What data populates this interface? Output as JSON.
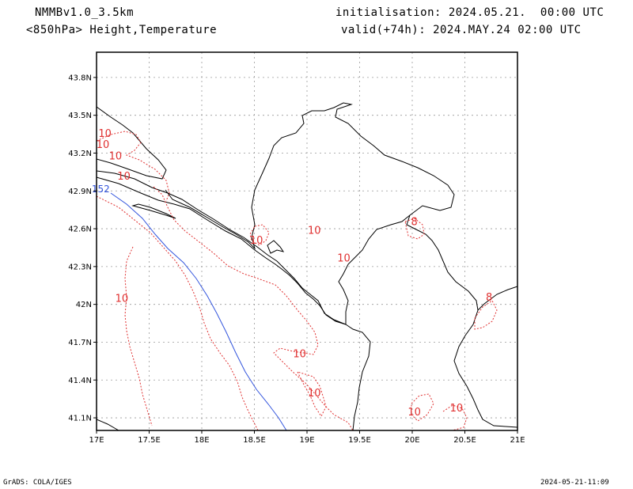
{
  "header": {
    "model": "NMMBv1.0_3.5km",
    "level_field": "<850hPa> Height,Temperature",
    "init": "initialisation: 2024.05.21.  00:00 UTC",
    "valid": "valid(+74h): 2024.MAY.24 02:00 UTC"
  },
  "footer": {
    "left": "GrADS: COLA/IGES",
    "right": "2024-05-21-11:09"
  },
  "map": {
    "lon_range": [
      17,
      21
    ],
    "lat_range": [
      41.0,
      44.0
    ],
    "x_ticks": [
      {
        "value": 17.0,
        "label": "17E"
      },
      {
        "value": 17.5,
        "label": "17.5E"
      },
      {
        "value": 18.0,
        "label": "18E"
      },
      {
        "value": 18.5,
        "label": "18.5E"
      },
      {
        "value": 19.0,
        "label": "19E"
      },
      {
        "value": 19.5,
        "label": "19.5E"
      },
      {
        "value": 20.0,
        "label": "20E"
      },
      {
        "value": 20.5,
        "label": "20.5E"
      },
      {
        "value": 21.0,
        "label": "21E"
      }
    ],
    "y_ticks": [
      {
        "value": 41.1,
        "label": "41.1N"
      },
      {
        "value": 41.4,
        "label": "41.4N"
      },
      {
        "value": 41.7,
        "label": "41.7N"
      },
      {
        "value": 42.0,
        "label": "42N"
      },
      {
        "value": 42.3,
        "label": "42.3N"
      },
      {
        "value": 42.6,
        "label": "42.6N"
      },
      {
        "value": 42.9,
        "label": "42.9N"
      },
      {
        "value": 43.2,
        "label": "43.2N"
      },
      {
        "value": 43.5,
        "label": "43.5N"
      },
      {
        "value": 43.8,
        "label": "43.8N"
      }
    ],
    "grid": "dotted",
    "temperature_labels": [
      {
        "text": "10",
        "lon": 17.08,
        "lat": 43.33
      },
      {
        "text": "10",
        "lon": 17.06,
        "lat": 43.24
      },
      {
        "text": "10",
        "lon": 17.18,
        "lat": 43.15
      },
      {
        "text": "10",
        "lon": 17.26,
        "lat": 42.99
      },
      {
        "text": "10",
        "lon": 18.52,
        "lat": 42.48
      },
      {
        "text": "10",
        "lon": 19.07,
        "lat": 42.56
      },
      {
        "text": "10",
        "lon": 19.35,
        "lat": 42.34
      },
      {
        "text": "10",
        "lon": 17.24,
        "lat": 42.02
      },
      {
        "text": "10",
        "lon": 18.93,
        "lat": 41.58
      },
      {
        "text": "10",
        "lon": 19.07,
        "lat": 41.27
      },
      {
        "text": "10",
        "lon": 20.02,
        "lat": 41.12
      },
      {
        "text": "10",
        "lon": 20.42,
        "lat": 41.15
      },
      {
        "text": "8",
        "lon": 20.02,
        "lat": 42.63
      },
      {
        "text": "8",
        "lon": 20.73,
        "lat": 42.03
      }
    ],
    "height_labels": [
      {
        "text": "152",
        "lon": 17.04,
        "lat": 42.89
      }
    ],
    "colors": {
      "coast": "#000000",
      "temperature": "#e03030",
      "height": "#3355dd",
      "grid": "#999999"
    }
  }
}
